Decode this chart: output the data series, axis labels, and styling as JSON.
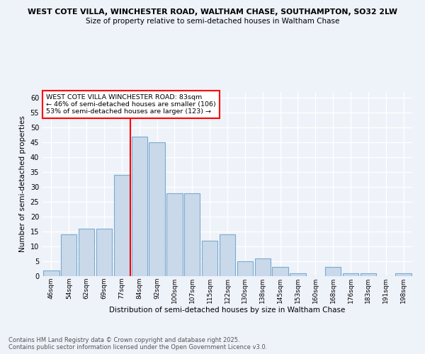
{
  "title": "WEST COTE VILLA, WINCHESTER ROAD, WALTHAM CHASE, SOUTHAMPTON, SO32 2LW",
  "subtitle": "Size of property relative to semi-detached houses in Waltham Chase",
  "xlabel": "Distribution of semi-detached houses by size in Waltham Chase",
  "ylabel": "Number of semi-detached properties",
  "bin_labels": [
    "46sqm",
    "54sqm",
    "62sqm",
    "69sqm",
    "77sqm",
    "84sqm",
    "92sqm",
    "100sqm",
    "107sqm",
    "115sqm",
    "122sqm",
    "130sqm",
    "138sqm",
    "145sqm",
    "153sqm",
    "160sqm",
    "168sqm",
    "176sqm",
    "183sqm",
    "191sqm",
    "198sqm"
  ],
  "values": [
    2,
    14,
    16,
    16,
    34,
    47,
    45,
    28,
    28,
    12,
    14,
    5,
    6,
    3,
    1,
    0,
    3,
    1,
    1,
    0,
    1
  ],
  "bar_color": "#c9d9ea",
  "bar_edge_color": "#7aaad0",
  "vline_color": "red",
  "annotation_text": "WEST COTE VILLA WINCHESTER ROAD: 83sqm\n← 46% of semi-detached houses are smaller (106)\n53% of semi-detached houses are larger (123) →",
  "annotation_box_color": "white",
  "annotation_box_edge_color": "red",
  "ylim": [
    0,
    62
  ],
  "yticks": [
    0,
    5,
    10,
    15,
    20,
    25,
    30,
    35,
    40,
    45,
    50,
    55,
    60
  ],
  "footer": "Contains HM Land Registry data © Crown copyright and database right 2025.\nContains public sector information licensed under the Open Government Licence v3.0.",
  "bg_color": "#eef2f9",
  "grid_color": "white"
}
